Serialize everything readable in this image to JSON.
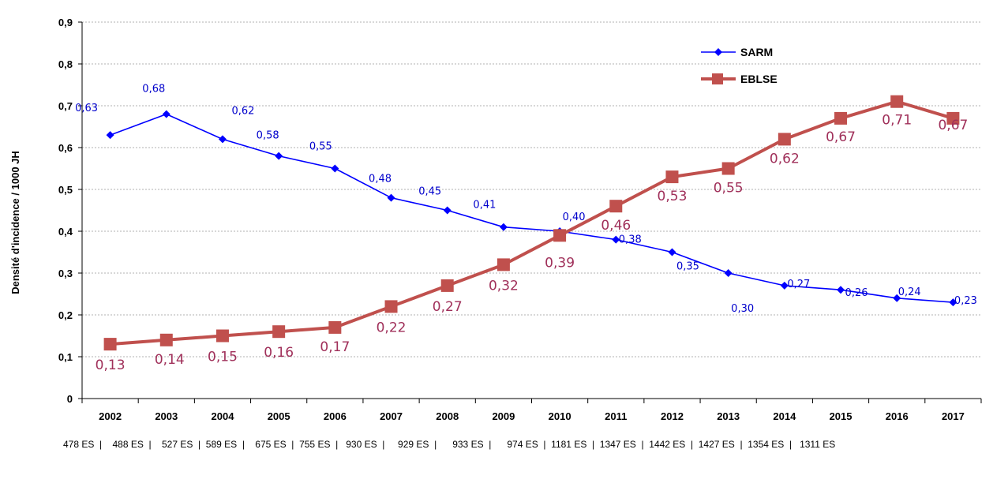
{
  "chart_data": {
    "type": "line",
    "title": "",
    "xlabel": "",
    "ylabel": "Densité d'incidence / 1000 JH",
    "ylim": [
      0,
      0.9
    ],
    "yticks": [
      "0",
      "0,1",
      "0,2",
      "0,3",
      "0,4",
      "0,5",
      "0,6",
      "0,7",
      "0,8",
      "0,9"
    ],
    "grid": true,
    "legend_position": "top-right",
    "categories": [
      "2002",
      "2003",
      "2004",
      "2005",
      "2006",
      "2007",
      "2008",
      "2009",
      "2010",
      "2011",
      "2012",
      "2013",
      "2014",
      "2015",
      "2016",
      "2017"
    ],
    "series": [
      {
        "name": "SARM",
        "color": "#0000ff",
        "label_color": "#0000cc",
        "marker": "diamond",
        "values": [
          0.63,
          0.68,
          0.62,
          0.58,
          0.55,
          0.48,
          0.45,
          0.41,
          0.4,
          0.38,
          0.35,
          0.3,
          0.27,
          0.26,
          0.24,
          0.23
        ],
        "labels": [
          "0,63",
          "0,68",
          "0,62",
          "0,58",
          "0,55",
          "0,48",
          "0,45",
          "0,41",
          "0,40",
          "0,38",
          "0,35",
          "0,30",
          "0,27",
          "0,26",
          "0,24",
          "0,23"
        ]
      },
      {
        "name": "EBLSE",
        "color": "#c0504d",
        "label_color": "#a0305a",
        "marker": "square",
        "values": [
          0.13,
          0.14,
          0.15,
          0.16,
          0.17,
          0.22,
          0.27,
          0.32,
          0.39,
          0.46,
          0.53,
          0.55,
          0.62,
          0.67,
          0.71,
          0.67
        ],
        "labels": [
          "0,13",
          "0,14",
          "0,15",
          "0,16",
          "0,17",
          "0,22",
          "0,27",
          "0,32",
          "0,39",
          "0,46",
          "0,53",
          "0,55",
          "0,62",
          "0,67",
          "0,71",
          "0,67"
        ]
      }
    ],
    "es_counts": "478 ES  |    488 ES  |    527 ES  |  589 ES  |    675 ES  |  755 ES  |   930 ES  |     929 ES  |      933 ES  |      974 ES  |  1181 ES  |  1347 ES  |  1442 ES  |  1427 ES  |  1354 ES  |   1311 ES"
  }
}
